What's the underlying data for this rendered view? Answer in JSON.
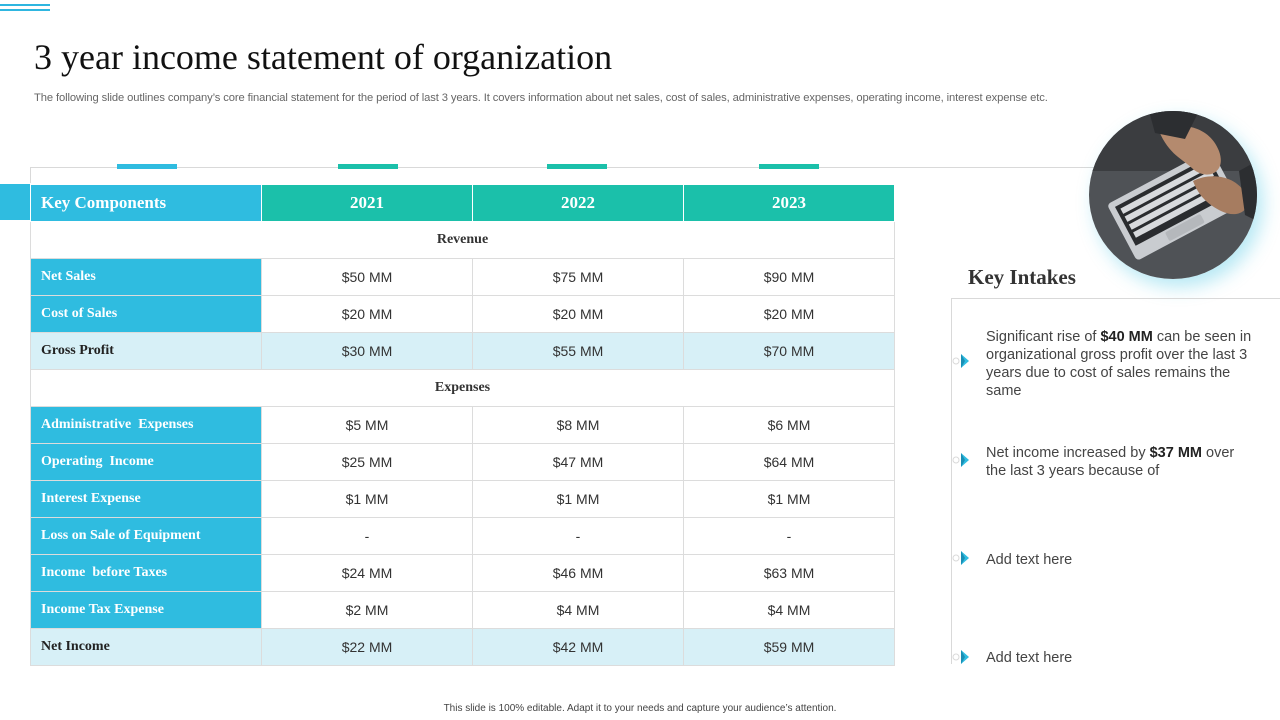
{
  "title": "3 year income statement of organization",
  "subtitle": "The following slide outlines company’s core financial statement for the period of last 3 years. It covers information about net sales, cost of sales, administrative expenses, operating income, interest expense etc.",
  "table": {
    "header": {
      "label": "Key Components",
      "years": [
        "2021",
        "2022",
        "2023"
      ]
    },
    "sections": [
      {
        "title": "Revenue",
        "rows": [
          {
            "label": "Net Sales",
            "values": [
              "$50 MM",
              "$75 MM",
              "$90 MM"
            ]
          },
          {
            "label": "Cost of Sales",
            "values": [
              "$20 MM",
              "$20 MM",
              "$20 MM"
            ]
          },
          {
            "label": "Gross Profit",
            "values": [
              "$30 MM",
              "$55 MM",
              "$70 MM"
            ]
          }
        ]
      },
      {
        "title": "Expenses",
        "rows": [
          {
            "label": "Administrative  Expenses",
            "values": [
              "$5 MM",
              "$8 MM",
              "$6 MM"
            ]
          },
          {
            "label": "Operating  Income",
            "values": [
              "$25 MM",
              "$47 MM",
              "$64 MM"
            ]
          },
          {
            "label": "Interest Expense",
            "values": [
              "$1 MM",
              "$1 MM",
              "$1 MM"
            ]
          },
          {
            "label": "Loss on Sale of Equipment",
            "values": [
              "-",
              "-",
              "-"
            ]
          },
          {
            "label": "Income  before Taxes",
            "values": [
              "$24 MM",
              "$46 MM",
              "$63 MM"
            ]
          },
          {
            "label": "Income Tax Expense",
            "values": [
              "$2 MM",
              "$4 MM",
              "$4 MM"
            ]
          },
          {
            "label": "Net Income",
            "values": [
              "$22 MM",
              "$42 MM",
              "$59 MM"
            ]
          }
        ]
      }
    ]
  },
  "intakes": {
    "title": "Key Intakes",
    "items": [
      {
        "pre": "Significant rise of ",
        "bold": "$40 MM",
        "post": " can be seen in organizational gross profit over the last 3 years due to cost of sales remains the same"
      },
      {
        "pre": "Net income increased by ",
        "bold": "$37 MM",
        "post": " over the last 3 years because of"
      },
      {
        "pre": "Add text here",
        "bold": "",
        "post": ""
      },
      {
        "pre": "Add text here",
        "bold": "",
        "post": ""
      }
    ]
  },
  "footer": "This slide is 100% editable.  Adapt it to your needs and capture your audience’s attention.",
  "colors": {
    "accent_blue": "#2fbce0",
    "accent_teal": "#1bc0aa",
    "light_row": "#d7f0f7"
  },
  "icons": [
    "laptop-typing-photo",
    "chevron-right-icon"
  ]
}
